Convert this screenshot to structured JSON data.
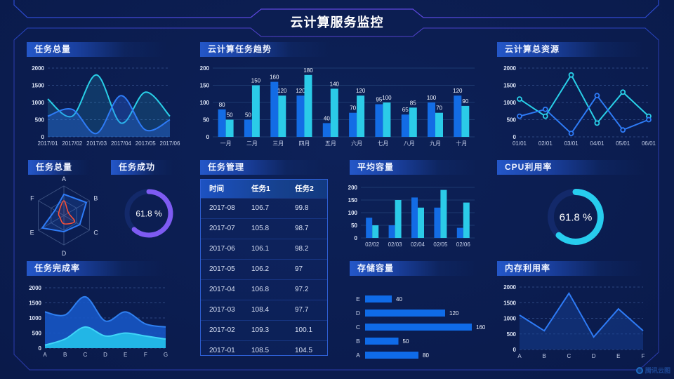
{
  "page": {
    "title": "云计算服务监控",
    "brand": "腾讯云图"
  },
  "panels": {
    "task_total": "任务总量",
    "trend": "云计算任务趋势",
    "resources": "云计算总资源",
    "radar": "任务总量",
    "success": "任务成功",
    "management": "任务管理",
    "avg_capacity": "平均容量",
    "cpu": "CPU利用率",
    "completion": "任务完成率",
    "storage": "存储容量",
    "memory": "内存利用率"
  },
  "table": {
    "headers": [
      "时间",
      "任务1",
      "任务2"
    ],
    "rows": [
      [
        "2017-08",
        "106.7",
        "99.8"
      ],
      [
        "2017-07",
        "105.8",
        "98.7"
      ],
      [
        "2017-06",
        "106.1",
        "98.2"
      ],
      [
        "2017-05",
        "106.2",
        "97"
      ],
      [
        "2017-04",
        "106.8",
        "97.2"
      ],
      [
        "2017-03",
        "108.4",
        "97.7"
      ],
      [
        "2017-02",
        "109.3",
        "100.1"
      ],
      [
        "2017-01",
        "108.5",
        "104.5"
      ]
    ]
  },
  "chart_data": [
    {
      "id": "task_total",
      "type": "line",
      "title": "任务总量",
      "x": [
        "2017/01",
        "2017/02",
        "2017/03",
        "2017/04",
        "2017/05",
        "2017/06"
      ],
      "ylim": [
        0,
        2000
      ],
      "yticks": [
        0,
        500,
        1000,
        1500,
        2000
      ],
      "series": [
        {
          "name": "series1",
          "color": "#29d0e8",
          "fill": "rgba(41,200,230,0.16)",
          "values": [
            1100,
            600,
            1800,
            400,
            1300,
            600
          ]
        },
        {
          "name": "series2",
          "color": "#2e7bf6",
          "fill": "rgba(46,110,240,0.32)",
          "values": [
            600,
            800,
            100,
            1200,
            200,
            500
          ]
        }
      ]
    },
    {
      "id": "trend",
      "type": "bar",
      "title": "云计算任务趋势",
      "categories": [
        "一月",
        "二月",
        "三月",
        "四月",
        "五月",
        "六月",
        "七月",
        "八月",
        "九月",
        "十月"
      ],
      "ylim": [
        0,
        200
      ],
      "yticks": [
        0,
        50,
        100,
        150,
        200
      ],
      "series": [
        {
          "name": "任务1",
          "color": "#136ce5",
          "values": [
            80,
            50,
            160,
            120,
            40,
            70,
            95,
            65,
            100,
            120
          ]
        },
        {
          "name": "任务2",
          "color": "#2bcbe8",
          "values": [
            50,
            150,
            120,
            180,
            140,
            120,
            100,
            85,
            70,
            90
          ]
        }
      ]
    },
    {
      "id": "resources",
      "type": "line",
      "title": "云计算总资源",
      "x": [
        "01/01",
        "02/01",
        "03/01",
        "04/01",
        "05/01",
        "06/01"
      ],
      "ylim": [
        0,
        2000
      ],
      "yticks": [
        0,
        500,
        1000,
        1500,
        2000
      ],
      "series": [
        {
          "name": "series1",
          "color": "#29d0e8",
          "values": [
            1100,
            600,
            1800,
            400,
            1300,
            600
          ]
        },
        {
          "name": "series2",
          "color": "#2e7bf6",
          "values": [
            600,
            800,
            100,
            1200,
            200,
            500
          ]
        }
      ]
    },
    {
      "id": "task_radar",
      "type": "radar",
      "title": "任务总量",
      "axes": [
        "A",
        "B",
        "C",
        "D",
        "E",
        "F"
      ],
      "max": 100,
      "series": [
        {
          "name": "blue",
          "color": "#2e7bf6",
          "fill": "rgba(46,123,246,0.18)",
          "values": [
            72,
            88,
            62,
            55,
            85,
            35
          ]
        },
        {
          "name": "red",
          "color": "#ff5036",
          "fill": "rgba(255,80,54,0.08)",
          "values": [
            50,
            18,
            42,
            28,
            15,
            20
          ]
        }
      ]
    },
    {
      "id": "success_gauge",
      "type": "gauge",
      "title": "任务成功",
      "value": 61.8,
      "unit": "%",
      "color": "#7e5bf2",
      "track": "#13296a"
    },
    {
      "id": "cpu_gauge",
      "type": "gauge",
      "title": "CPU利用率",
      "value": 61.8,
      "unit": "%",
      "color": "#27cdee",
      "track": "#13296a"
    },
    {
      "id": "completion",
      "type": "line",
      "title": "任务完成率",
      "x": [
        "A",
        "B",
        "C",
        "D",
        "E",
        "F",
        "G"
      ],
      "ylim": [
        0,
        2000
      ],
      "yticks": [
        0,
        500,
        1000,
        1500,
        2000
      ],
      "series": [
        {
          "name": "series1",
          "color": "#2f7ff0",
          "fill": "rgba(23,88,200,0.88)",
          "values": [
            1200,
            1100,
            1700,
            900,
            1200,
            800,
            700
          ]
        },
        {
          "name": "series2",
          "color": "#3fd4f8",
          "fill": "#22b6e6",
          "values": [
            100,
            300,
            700,
            400,
            500,
            400,
            300
          ]
        }
      ]
    },
    {
      "id": "avg_capacity",
      "type": "bar",
      "title": "平均容量",
      "categories": [
        "02/02",
        "02/03",
        "02/04",
        "02/05",
        "02/06"
      ],
      "ylim": [
        0,
        200
      ],
      "yticks": [
        0,
        50,
        100,
        150,
        200
      ],
      "series": [
        {
          "name": "series1",
          "color": "#136ce5",
          "values": [
            80,
            50,
            160,
            120,
            40
          ]
        },
        {
          "name": "series2",
          "color": "#2bcbe8",
          "values": [
            50,
            150,
            120,
            190,
            140
          ]
        }
      ]
    },
    {
      "id": "storage",
      "type": "hbar",
      "title": "存储容量",
      "color": "#0f6be8",
      "rows": [
        {
          "label": "E",
          "value": 40
        },
        {
          "label": "D",
          "value": 120
        },
        {
          "label": "C",
          "value": 160
        },
        {
          "label": "B",
          "value": 50
        },
        {
          "label": "A",
          "value": 80
        }
      ]
    },
    {
      "id": "memory",
      "type": "line",
      "title": "内存利用率",
      "x": [
        "A",
        "B",
        "C",
        "D",
        "E",
        "F"
      ],
      "ylim": [
        0,
        2000
      ],
      "yticks": [
        0,
        500,
        1000,
        1500,
        2000
      ],
      "series": [
        {
          "name": "series1",
          "color": "#2e7bf6",
          "fill": "rgba(22,64,150,0.50)",
          "values": [
            1100,
            600,
            1800,
            400,
            1300,
            600
          ]
        }
      ]
    }
  ]
}
